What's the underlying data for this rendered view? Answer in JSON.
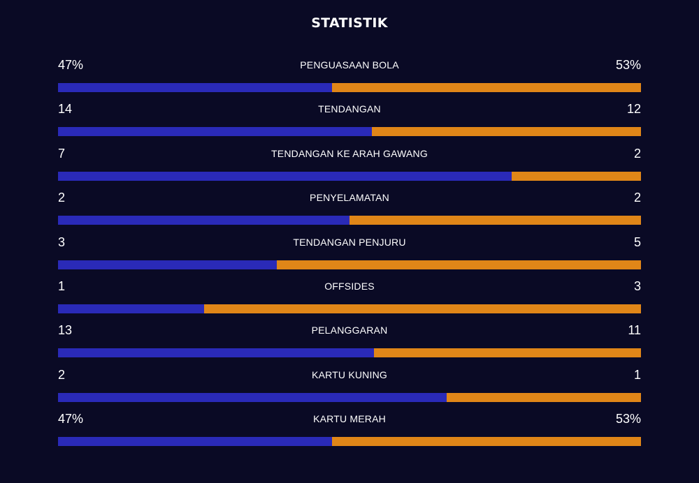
{
  "title": "STATISTIK",
  "colors": {
    "background": "#0a0a25",
    "home": "#2a2ab8",
    "away": "#e08618",
    "text": "#ffffff"
  },
  "stats": [
    {
      "label": "PENGUASAAN BOLA",
      "home": "47%",
      "away": "53%",
      "home_share": 0.47
    },
    {
      "label": "TENDANGAN",
      "home": "14",
      "away": "12",
      "home_share": 0.5385
    },
    {
      "label": "TENDANGAN KE ARAH GAWANG",
      "home": "7",
      "away": "2",
      "home_share": 0.7778
    },
    {
      "label": "PENYELAMATAN",
      "home": "2",
      "away": "2",
      "home_share": 0.5
    },
    {
      "label": "TENDANGAN PENJURU",
      "home": "3",
      "away": "5",
      "home_share": 0.375
    },
    {
      "label": "OFFSIDES",
      "home": "1",
      "away": "3",
      "home_share": 0.25
    },
    {
      "label": "PELANGGARAN",
      "home": "13",
      "away": "11",
      "home_share": 0.5417
    },
    {
      "label": "KARTU KUNING",
      "home": "2",
      "away": "1",
      "home_share": 0.6667
    },
    {
      "label": "KARTU MERAH",
      "home": "47%",
      "away": "53%",
      "home_share": 0.47
    }
  ]
}
